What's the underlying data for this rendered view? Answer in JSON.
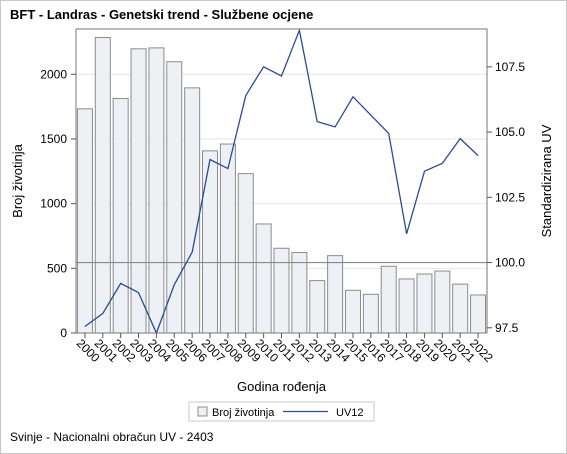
{
  "title": "BFT - Landras - Genetski trend - Službene ocjene",
  "footnote": "Svinje - Nacionalni obračun UV - 2403",
  "chart_data": {
    "type": "bar",
    "title": "BFT - Landras - Genetski trend - Službene ocjene",
    "xlabel": "Godina rođenja",
    "ylabel": "Broj životinja",
    "y2label": "Standardizirana UV",
    "categories": [
      "2000",
      "2001",
      "2002",
      "2003",
      "2004",
      "2005",
      "2006",
      "2007",
      "2008",
      "2009",
      "2010",
      "2011",
      "2012",
      "2013",
      "2014",
      "2015",
      "2016",
      "2017",
      "2018",
      "2019",
      "2020",
      "2021",
      "2022"
    ],
    "ylim": [
      0,
      2350
    ],
    "yticks": [
      0,
      500,
      1000,
      1500,
      2000
    ],
    "y2lim": [
      97.3,
      108.95
    ],
    "y2ticks": [
      97.5,
      100.0,
      102.5,
      105.0,
      107.5
    ],
    "reference_line": 100.0,
    "grid": true,
    "legend_position": "bottom",
    "series": [
      {
        "name": "Broj životinja",
        "type": "bar",
        "axis": "left",
        "color": "#edf0f5",
        "stroke": "#8c8c8c",
        "values": [
          1733,
          2284,
          1813,
          2197,
          2204,
          2097,
          1895,
          1408,
          1461,
          1232,
          843,
          655,
          622,
          405,
          598,
          330,
          299,
          516,
          418,
          456,
          479,
          378,
          294
        ]
      },
      {
        "name": "UV12",
        "type": "line",
        "axis": "right",
        "color": "#2a4b96",
        "values": [
          97.55,
          98.05,
          99.2,
          98.85,
          97.3,
          99.15,
          100.4,
          103.95,
          103.6,
          106.4,
          107.5,
          107.15,
          108.9,
          105.4,
          105.2,
          106.35,
          105.65,
          104.95,
          101.1,
          103.5,
          103.8,
          104.75,
          104.1
        ]
      }
    ]
  }
}
